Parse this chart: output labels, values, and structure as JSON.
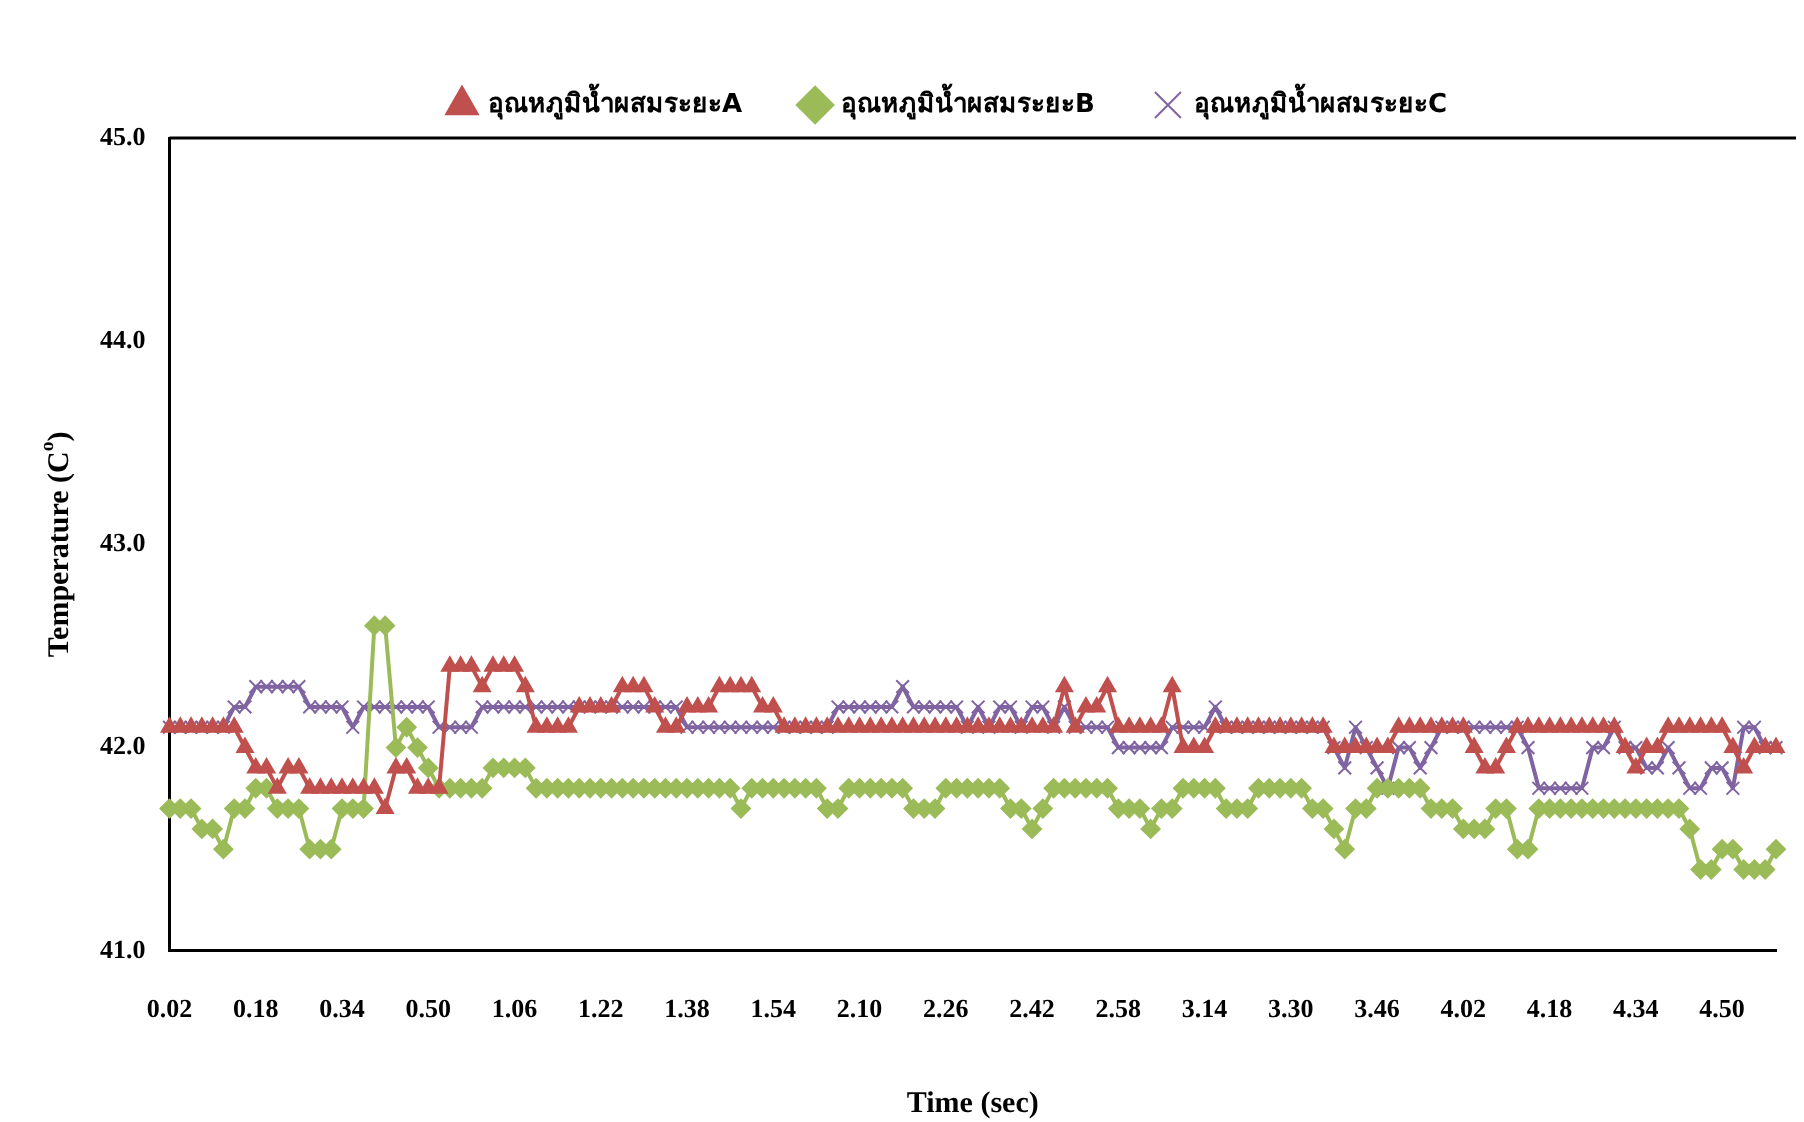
{
  "chart_data": {
    "type": "line",
    "xlabel": "Time (sec)",
    "ylabel": "Temperature (C$^{o}$)",
    "categories": [
      "0.02",
      null,
      null,
      null,
      null,
      null,
      null,
      null,
      "0.18",
      null,
      null,
      null,
      null,
      null,
      null,
      null,
      "0.34",
      null,
      null,
      null,
      null,
      null,
      null,
      null,
      "0.50",
      null,
      null,
      null,
      null,
      null,
      null,
      null,
      "1.06",
      null,
      null,
      null,
      null,
      null,
      null,
      null,
      "1.22",
      null,
      null,
      null,
      null,
      null,
      null,
      null,
      "1.38",
      null,
      null,
      null,
      null,
      null,
      null,
      null,
      "1.54",
      null,
      null,
      null,
      null,
      null,
      null,
      null,
      "2.10",
      null,
      null,
      null,
      null,
      null,
      null,
      null,
      "2.26",
      null,
      null,
      null,
      null,
      null,
      null,
      null,
      "2.42",
      null,
      null,
      null,
      null,
      null,
      null,
      null,
      "2.58",
      null,
      null,
      null,
      null,
      null,
      null,
      null,
      "3.14",
      null,
      null,
      null,
      null,
      null,
      null,
      null,
      "3.30",
      null,
      null,
      null,
      null,
      null,
      null,
      null,
      "3.46",
      null,
      null,
      null,
      null,
      null,
      null,
      null,
      "4.02",
      null,
      null,
      null,
      null,
      null,
      null,
      null,
      "4.18",
      null,
      null,
      null,
      null,
      null,
      null,
      null,
      "4.34",
      null,
      null,
      null,
      null,
      null,
      null,
      null,
      "4.50",
      null,
      null,
      null,
      null,
      null
    ],
    "series": [
      {
        "name": "อุณหภูมิน้ำผสมระยะA",
        "color": "#c0504d",
        "marker": "triangle",
        "values": [
          42.1,
          42.1,
          42.1,
          42.1,
          42.1,
          42.1,
          42.1,
          42.0,
          41.9,
          41.9,
          41.8,
          41.9,
          41.9,
          41.8,
          41.8,
          41.8,
          41.8,
          41.8,
          41.8,
          41.8,
          41.7,
          41.9,
          41.9,
          41.8,
          41.8,
          41.8,
          42.4,
          42.4,
          42.4,
          42.3,
          42.4,
          42.4,
          42.4,
          42.3,
          42.1,
          42.1,
          42.1,
          42.1,
          42.2,
          42.2,
          42.2,
          42.2,
          42.3,
          42.3,
          42.3,
          42.2,
          42.1,
          42.1,
          42.2,
          42.2,
          42.2,
          42.3,
          42.3,
          42.3,
          42.3,
          42.2,
          42.2,
          42.1,
          42.1,
          42.1,
          42.1,
          42.1,
          42.1,
          42.1,
          42.1,
          42.1,
          42.1,
          42.1,
          42.1,
          42.1,
          42.1,
          42.1,
          42.1,
          42.1,
          42.1,
          42.1,
          42.1,
          42.1,
          42.1,
          42.1,
          42.1,
          42.1,
          42.1,
          42.3,
          42.1,
          42.2,
          42.2,
          42.3,
          42.1,
          42.1,
          42.1,
          42.1,
          42.1,
          42.3,
          42.0,
          42.0,
          42.0,
          42.1,
          42.1,
          42.1,
          42.1,
          42.1,
          42.1,
          42.1,
          42.1,
          42.1,
          42.1,
          42.1,
          42.0,
          42.0,
          42.0,
          42.0,
          42.0,
          42.0,
          42.1,
          42.1,
          42.1,
          42.1,
          42.1,
          42.1,
          42.1,
          42.0,
          41.9,
          41.9,
          42.0,
          42.1,
          42.1,
          42.1,
          42.1,
          42.1,
          42.1,
          42.1,
          42.1,
          42.1,
          42.1,
          42.0,
          41.9,
          42.0,
          42.0,
          42.1,
          42.1,
          42.1,
          42.1,
          42.1,
          42.1,
          42.0,
          41.9,
          42.0,
          42.0,
          42.0
        ]
      },
      {
        "name": "อุณหภูมิน้ำผสมระยะB",
        "color": "#9bbb59",
        "marker": "diamond",
        "values": [
          41.7,
          41.7,
          41.7,
          41.6,
          41.6,
          41.5,
          41.7,
          41.7,
          41.8,
          41.8,
          41.7,
          41.7,
          41.7,
          41.5,
          41.5,
          41.5,
          41.7,
          41.7,
          41.7,
          42.6,
          42.6,
          42.0,
          42.1,
          42.0,
          41.9,
          41.8,
          41.8,
          41.8,
          41.8,
          41.8,
          41.9,
          41.9,
          41.9,
          41.9,
          41.8,
          41.8,
          41.8,
          41.8,
          41.8,
          41.8,
          41.8,
          41.8,
          41.8,
          41.8,
          41.8,
          41.8,
          41.8,
          41.8,
          41.8,
          41.8,
          41.8,
          41.8,
          41.8,
          41.7,
          41.8,
          41.8,
          41.8,
          41.8,
          41.8,
          41.8,
          41.8,
          41.7,
          41.7,
          41.8,
          41.8,
          41.8,
          41.8,
          41.8,
          41.8,
          41.7,
          41.7,
          41.7,
          41.8,
          41.8,
          41.8,
          41.8,
          41.8,
          41.8,
          41.7,
          41.7,
          41.6,
          41.7,
          41.8,
          41.8,
          41.8,
          41.8,
          41.8,
          41.8,
          41.7,
          41.7,
          41.7,
          41.6,
          41.7,
          41.7,
          41.8,
          41.8,
          41.8,
          41.8,
          41.7,
          41.7,
          41.7,
          41.8,
          41.8,
          41.8,
          41.8,
          41.8,
          41.7,
          41.7,
          41.6,
          41.5,
          41.7,
          41.7,
          41.8,
          41.8,
          41.8,
          41.8,
          41.8,
          41.7,
          41.7,
          41.7,
          41.6,
          41.6,
          41.6,
          41.7,
          41.7,
          41.5,
          41.5,
          41.7,
          41.7,
          41.7,
          41.7,
          41.7,
          41.7,
          41.7,
          41.7,
          41.7,
          41.7,
          41.7,
          41.7,
          41.7,
          41.7,
          41.6,
          41.4,
          41.4,
          41.5,
          41.5,
          41.4,
          41.4,
          41.4,
          41.5
        ]
      },
      {
        "name": "อุณหภูมิน้ำผสมระยะC",
        "color": "#8064a2",
        "marker": "cross",
        "values": [
          42.1,
          42.1,
          42.1,
          42.1,
          42.1,
          42.1,
          42.2,
          42.2,
          42.3,
          42.3,
          42.3,
          42.3,
          42.3,
          42.2,
          42.2,
          42.2,
          42.2,
          42.1,
          42.2,
          42.2,
          42.2,
          42.2,
          42.2,
          42.2,
          42.2,
          42.1,
          42.1,
          42.1,
          42.1,
          42.2,
          42.2,
          42.2,
          42.2,
          42.2,
          42.2,
          42.2,
          42.2,
          42.2,
          42.2,
          42.2,
          42.2,
          42.2,
          42.2,
          42.2,
          42.2,
          42.2,
          42.2,
          42.2,
          42.1,
          42.1,
          42.1,
          42.1,
          42.1,
          42.1,
          42.1,
          42.1,
          42.1,
          42.1,
          42.1,
          42.1,
          42.1,
          42.1,
          42.2,
          42.2,
          42.2,
          42.2,
          42.2,
          42.2,
          42.3,
          42.2,
          42.2,
          42.2,
          42.2,
          42.2,
          42.1,
          42.2,
          42.1,
          42.2,
          42.2,
          42.1,
          42.2,
          42.2,
          42.1,
          42.2,
          42.1,
          42.1,
          42.1,
          42.1,
          42.0,
          42.0,
          42.0,
          42.0,
          42.0,
          42.1,
          42.1,
          42.1,
          42.1,
          42.2,
          42.1,
          42.1,
          42.1,
          42.1,
          42.1,
          42.1,
          42.1,
          42.1,
          42.1,
          42.1,
          42.0,
          41.9,
          42.1,
          42.0,
          41.9,
          41.8,
          42.0,
          42.0,
          41.9,
          42.0,
          42.1,
          42.1,
          42.1,
          42.1,
          42.1,
          42.1,
          42.1,
          42.1,
          42.0,
          41.8,
          41.8,
          41.8,
          41.8,
          41.8,
          42.0,
          42.0,
          42.1,
          42.0,
          42.0,
          41.9,
          41.9,
          42.0,
          41.9,
          41.8,
          41.8,
          41.9,
          41.9,
          41.8,
          42.1,
          42.1,
          42.0,
          42.0
        ]
      }
    ],
    "ylim": [
      41,
      45
    ],
    "yticks": [
      {
        "value": 41,
        "label": "41.0"
      },
      {
        "value": 42,
        "label": "42.0"
      },
      {
        "value": 43,
        "label": "43.0"
      },
      {
        "value": 44,
        "label": "44.0"
      },
      {
        "value": 45,
        "label": "45.0"
      }
    ],
    "grid": false,
    "legend": "top",
    "line_style": "solid"
  }
}
